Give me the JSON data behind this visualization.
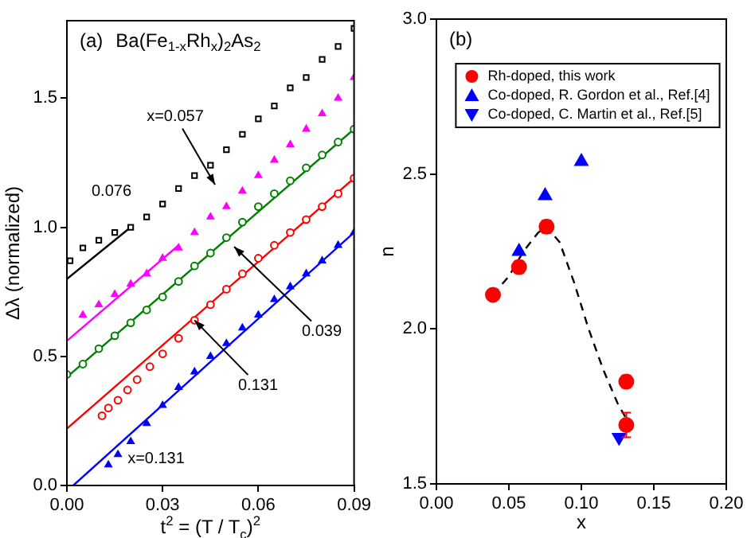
{
  "chart_data": [
    {
      "type": "scatter",
      "title": "(a)",
      "xlabel": "t$^{2}$ = (T / T$_{c}$)$^{2}$",
      "ylabel": "Δλ (normalized)",
      "xlim": [
        0,
        0.09
      ],
      "xticks": [
        {
          "value": 0,
          "label": "0.00"
        },
        {
          "value": 0.03,
          "label": "0.03"
        },
        {
          "value": 0.06,
          "label": "0.06"
        },
        {
          "value": 0.09,
          "label": "0.09"
        }
      ],
      "ylim": [
        0,
        1.8
      ],
      "yticks": [
        {
          "value": 0,
          "label": "0.0"
        },
        {
          "value": 0.5,
          "label": "0.5"
        },
        {
          "value": 1,
          "label": "1.0"
        },
        {
          "value": 1.5,
          "label": "1.5"
        }
      ],
      "grid": false,
      "legend": false,
      "series": [
        {
          "type": "line",
          "color": "#000000",
          "marker": "none",
          "line_style": "solid",
          "x": [
            0,
            0.02
          ],
          "values": [
            0.8,
            1.0
          ]
        },
        {
          "type": "line",
          "color": "#ff00ff",
          "marker": "none",
          "line_style": "solid",
          "x": [
            0,
            0.035
          ],
          "values": [
            0.56,
            0.93
          ]
        },
        {
          "type": "line",
          "color": "#008000",
          "marker": "none",
          "line_style": "solid",
          "x": [
            0,
            0.09
          ],
          "values": [
            0.42,
            1.38
          ]
        },
        {
          "type": "line",
          "color": "#ff0000",
          "marker": "none",
          "line_style": "solid",
          "x": [
            0,
            0.09
          ],
          "values": [
            0.22,
            1.19
          ]
        },
        {
          "type": "line",
          "color": "#0000ff",
          "marker": "none",
          "line_style": "solid",
          "x": [
            0.002,
            0.09
          ],
          "values": [
            0,
            0.98
          ]
        },
        {
          "type": "scatter",
          "color": "#000000",
          "marker": "square",
          "x": [
            0.001,
            0.005,
            0.01,
            0.015,
            0.02,
            0.025,
            0.03,
            0.035,
            0.04,
            0.045,
            0.05,
            0.055,
            0.06,
            0.065,
            0.07,
            0.075,
            0.08,
            0.085,
            0.09
          ],
          "values": [
            0.87,
            0.92,
            0.95,
            0.98,
            1.0,
            1.04,
            1.09,
            1.15,
            1.2,
            1.24,
            1.3,
            1.36,
            1.42,
            1.47,
            1.54,
            1.58,
            1.65,
            1.7,
            1.77
          ]
        },
        {
          "type": "scatter",
          "color": "#ff00ff",
          "marker": "triangle",
          "x": [
            0.005,
            0.01,
            0.015,
            0.02,
            0.025,
            0.03,
            0.035,
            0.04,
            0.045,
            0.05,
            0.055,
            0.06,
            0.065,
            0.07,
            0.075,
            0.08,
            0.085,
            0.09
          ],
          "values": [
            0.66,
            0.7,
            0.74,
            0.78,
            0.82,
            0.88,
            0.92,
            0.98,
            1.04,
            1.08,
            1.14,
            1.2,
            1.26,
            1.32,
            1.38,
            1.44,
            1.5,
            1.58
          ]
        },
        {
          "type": "scatter",
          "color": "#008000",
          "marker": "circle",
          "x": [
            0,
            0.005,
            0.01,
            0.015,
            0.02,
            0.025,
            0.03,
            0.035,
            0.04,
            0.045,
            0.05,
            0.055,
            0.06,
            0.065,
            0.07,
            0.075,
            0.08,
            0.085,
            0.09
          ],
          "values": [
            0.43,
            0.47,
            0.53,
            0.58,
            0.63,
            0.68,
            0.73,
            0.79,
            0.85,
            0.9,
            0.96,
            1.02,
            1.08,
            1.13,
            1.18,
            1.23,
            1.28,
            1.33,
            1.38
          ]
        },
        {
          "type": "scatter",
          "color": "#ff0000",
          "marker": "circle",
          "x": [
            0.011,
            0.013,
            0.016,
            0.019,
            0.022,
            0.026,
            0.03,
            0.035,
            0.04,
            0.045,
            0.05,
            0.055,
            0.06,
            0.065,
            0.07,
            0.075,
            0.08,
            0.085,
            0.09
          ],
          "values": [
            0.27,
            0.3,
            0.33,
            0.37,
            0.41,
            0.46,
            0.51,
            0.57,
            0.64,
            0.7,
            0.76,
            0.82,
            0.88,
            0.93,
            0.98,
            1.03,
            1.08,
            1.13,
            1.19
          ]
        },
        {
          "type": "scatter",
          "color": "#0000ff",
          "marker": "triangle",
          "x": [
            0.013,
            0.016,
            0.02,
            0.025,
            0.03,
            0.035,
            0.04,
            0.045,
            0.05,
            0.055,
            0.06,
            0.065,
            0.07,
            0.075,
            0.08,
            0.085,
            0.09
          ],
          "values": [
            0.08,
            0.12,
            0.17,
            0.24,
            0.31,
            0.38,
            0.44,
            0.5,
            0.55,
            0.61,
            0.66,
            0.72,
            0.77,
            0.82,
            0.87,
            0.93,
            0.98
          ]
        }
      ],
      "annotations": [
        "Ba(Fe$_{1-x}$Rh$_{x}$)$_{2}$As$_{2}$",
        "x=0.057",
        "0.076",
        "0.039",
        {
          "text": "0.131",
          "x": 0.04,
          "y": 0.64
        },
        "x=0.131"
      ]
    },
    {
      "type": "scatter",
      "title": "(b)",
      "xlabel": "x",
      "ylabel": "n",
      "xlim": [
        0,
        0.2
      ],
      "xticks": [
        {
          "value": 0,
          "label": "0.00"
        },
        {
          "value": 0.05,
          "label": "0.05"
        },
        {
          "value": 0.1,
          "label": "0.10"
        },
        {
          "value": 0.15,
          "label": "0.15"
        },
        {
          "value": 0.2,
          "label": "0.20"
        }
      ],
      "ylim": [
        1.5,
        3
      ],
      "yticks": [
        1.5,
        {
          "value": 2,
          "label": "2.0"
        },
        2.5,
        {
          "value": 3,
          "label": "3.0"
        }
      ],
      "grid": false,
      "legend": "top",
      "series": [
        {
          "type": "line",
          "color": "#000000",
          "marker": "none",
          "line_style": "dashed",
          "x": [
            0.039,
            0.05,
            0.06,
            0.07,
            0.076,
            0.085,
            0.095,
            0.105,
            0.115,
            0.125,
            0.131
          ],
          "values": [
            2.11,
            2.17,
            2.25,
            2.31,
            2.33,
            2.28,
            2.15,
            2.0,
            1.87,
            1.76,
            1.71
          ]
        },
        {
          "type": "scatter",
          "name": "Rh-doped, this work",
          "color": "#ff0000",
          "marker": "circle",
          "x": [
            0.039,
            0.057,
            0.076,
            0.131,
            0.131
          ],
          "values": [
            2.11,
            2.2,
            2.33,
            1.83,
            1.69
          ],
          "errors": [
            null,
            0.02,
            0.02,
            0.02,
            0.04
          ]
        },
        {
          "type": "scatter",
          "name": "Co-doped, R. Gordon et al., Ref.[4]",
          "color": "#0000ff",
          "marker": "triangle",
          "x": [
            0.057,
            0.075,
            0.1
          ],
          "values": [
            2.25,
            2.43,
            2.54
          ]
        },
        {
          "type": "scatter",
          "name": "Co-doped, C. Martin et al., Ref.[5]",
          "color": "#0000ff",
          "marker": "triangle-down",
          "x": [
            0.126
          ],
          "values": [
            1.65
          ]
        }
      ]
    }
  ]
}
